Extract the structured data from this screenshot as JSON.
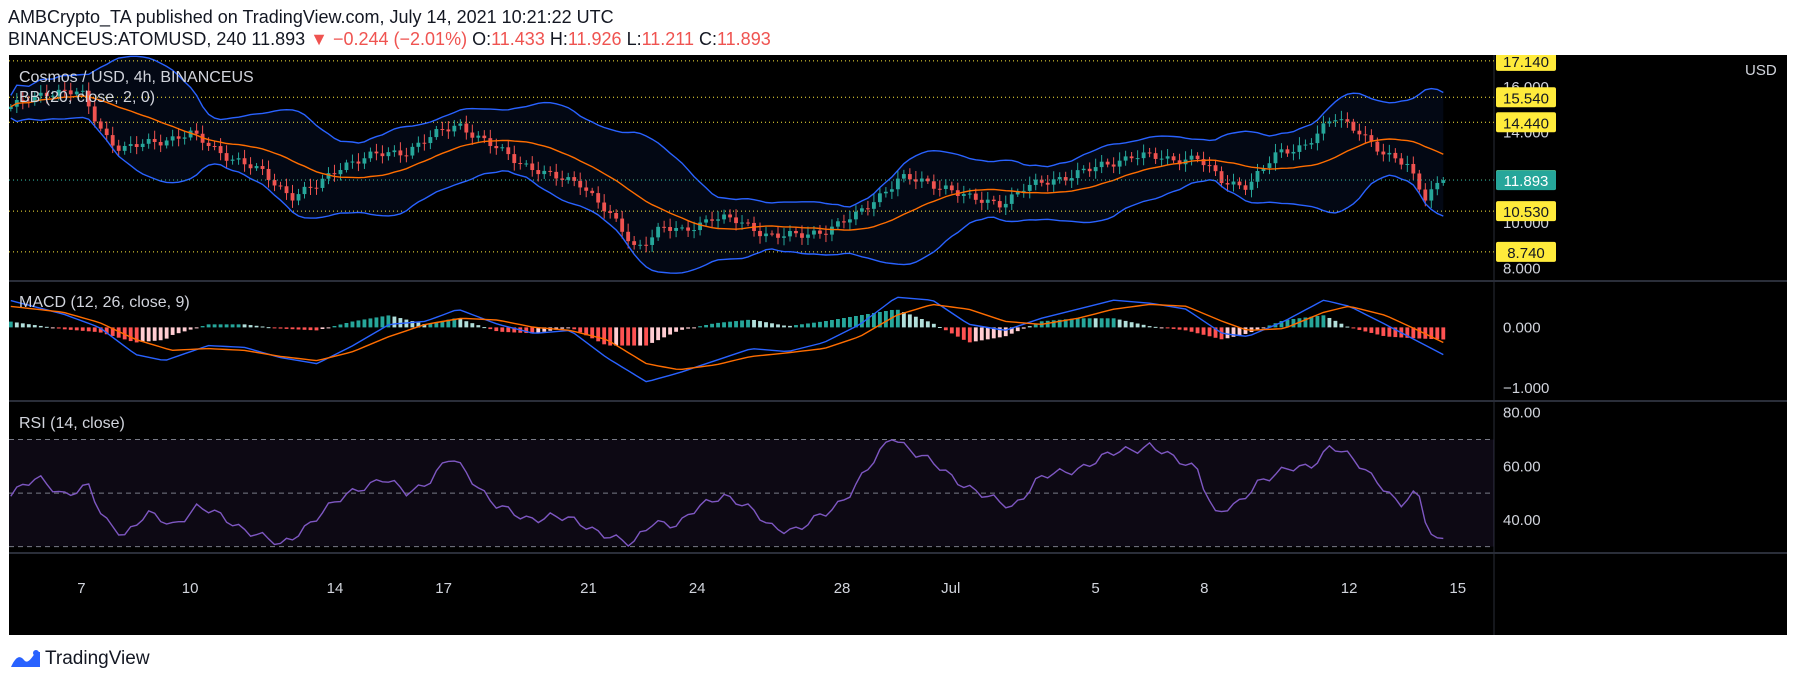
{
  "header": {
    "publish_line": "AMBCrypto_TA published on TradingView.com, July 14, 2021 10:21:22 UTC",
    "symbol": "BINANCEUS:ATOMUSD, 240",
    "last_price": "11.893",
    "change": "▼ −0.244 (−2.01%)",
    "o_label": "O:",
    "o_value": "11.433",
    "h_label": "H:",
    "h_value": "11.926",
    "l_label": "L:",
    "l_value": "11.211",
    "c_label": "C:",
    "c_value": "11.893"
  },
  "footer": {
    "brand": "TradingView"
  },
  "colors": {
    "up": "#26a69a",
    "down": "#ef5350",
    "bb_band": "#2962ff",
    "bb_basis": "#ff6d00",
    "macd_line": "#2962ff",
    "signal_line": "#ff6d00",
    "rsi_line": "#7e57c2",
    "level_box": "#ffeb3b",
    "price_box": "#26a69a"
  },
  "chart_data": [
    {
      "type": "candlestick",
      "title": "Cosmos / USD, 4h, BINANCEUS",
      "indicator_label": "BB (20, close, 2, 0)",
      "currency": "USD",
      "ylim": [
        7.5,
        17.4
      ],
      "y_ticks": [
        8,
        10,
        12,
        14,
        16
      ],
      "y_tick_labels": [
        "8.000",
        "10.000",
        "12.000",
        "14.000",
        "16.000"
      ],
      "x_ticks": [
        {
          "label": "7",
          "day": 7
        },
        {
          "label": "10",
          "day": 10
        },
        {
          "label": "14",
          "day": 14
        },
        {
          "label": "17",
          "day": 17
        },
        {
          "label": "21",
          "day": 21
        },
        {
          "label": "24",
          "day": 24
        },
        {
          "label": "28",
          "day": 28
        },
        {
          "label": "Jul",
          "day": 31
        },
        {
          "label": "5",
          "day": 35
        },
        {
          "label": "8",
          "day": 38
        },
        {
          "label": "12",
          "day": 42
        },
        {
          "label": "15",
          "day": 45
        }
      ],
      "xlim_days": [
        5.0,
        46.0
      ],
      "horizontal_levels": [
        {
          "value": 17.14,
          "label": "17.140"
        },
        {
          "value": 15.54,
          "label": "15.540"
        },
        {
          "value": 14.44,
          "label": "14.440"
        },
        {
          "value": 11.9,
          "label": "11.900"
        },
        {
          "value": 10.53,
          "label": "10.530"
        },
        {
          "value": 8.74,
          "label": "8.740"
        }
      ],
      "current_price": {
        "value": 11.893,
        "label": "11.893"
      },
      "close_keypoints": [
        [
          5.0,
          15.0
        ],
        [
          6.0,
          15.8
        ],
        [
          7.0,
          15.7
        ],
        [
          7.6,
          14.0
        ],
        [
          8.1,
          13.2
        ],
        [
          9.0,
          13.6
        ],
        [
          10.0,
          13.9
        ],
        [
          11.0,
          13.0
        ],
        [
          12.0,
          12.2
        ],
        [
          12.8,
          11.2
        ],
        [
          13.5,
          11.6
        ],
        [
          14.2,
          12.6
        ],
        [
          15.2,
          13.0
        ],
        [
          16.0,
          13.2
        ],
        [
          16.8,
          13.9
        ],
        [
          17.4,
          14.4
        ],
        [
          18.2,
          13.5
        ],
        [
          19.0,
          12.8
        ],
        [
          20.0,
          12.0
        ],
        [
          20.8,
          11.8
        ],
        [
          21.5,
          10.5
        ],
        [
          22.3,
          8.9
        ],
        [
          23.0,
          9.8
        ],
        [
          23.6,
          9.6
        ],
        [
          24.4,
          10.3
        ],
        [
          25.0,
          10.1
        ],
        [
          26.0,
          9.5
        ],
        [
          26.8,
          9.4
        ],
        [
          27.5,
          9.7
        ],
        [
          28.4,
          10.3
        ],
        [
          29.0,
          11.2
        ],
        [
          29.6,
          12.0
        ],
        [
          30.2,
          11.8
        ],
        [
          30.9,
          11.6
        ],
        [
          31.6,
          11.0
        ],
        [
          32.4,
          10.9
        ],
        [
          33.0,
          11.5
        ],
        [
          34.0,
          12.0
        ],
        [
          35.0,
          12.4
        ],
        [
          36.0,
          13.0
        ],
        [
          37.0,
          12.8
        ],
        [
          37.8,
          12.9
        ],
        [
          38.5,
          11.8
        ],
        [
          39.2,
          11.7
        ],
        [
          40.0,
          13.0
        ],
        [
          40.8,
          13.5
        ],
        [
          41.6,
          14.6
        ],
        [
          42.3,
          14.1
        ],
        [
          43.0,
          12.9
        ],
        [
          43.6,
          12.6
        ],
        [
          44.1,
          11.2
        ],
        [
          44.6,
          11.893
        ]
      ]
    },
    {
      "type": "histogram_line",
      "title": "MACD (12, 26, close, 9)",
      "ylim": [
        -1.2,
        0.75
      ],
      "y_ticks": [
        0,
        -1
      ],
      "y_tick_labels": [
        "0.000",
        "−1.000"
      ],
      "macd_keypoints": [
        [
          5.0,
          0.45
        ],
        [
          6.5,
          0.22
        ],
        [
          7.5,
          0.0
        ],
        [
          8.5,
          -0.45
        ],
        [
          9.3,
          -0.55
        ],
        [
          10.5,
          -0.3
        ],
        [
          11.5,
          -0.33
        ],
        [
          12.5,
          -0.5
        ],
        [
          13.5,
          -0.6
        ],
        [
          14.5,
          -0.3
        ],
        [
          15.5,
          0.05
        ],
        [
          16.5,
          0.1
        ],
        [
          17.4,
          0.3
        ],
        [
          18.5,
          0.05
        ],
        [
          19.5,
          -0.1
        ],
        [
          20.5,
          -0.05
        ],
        [
          21.5,
          -0.5
        ],
        [
          22.6,
          -0.9
        ],
        [
          23.5,
          -0.75
        ],
        [
          24.5,
          -0.55
        ],
        [
          25.5,
          -0.35
        ],
        [
          26.5,
          -0.4
        ],
        [
          27.5,
          -0.25
        ],
        [
          28.5,
          0.05
        ],
        [
          29.5,
          0.5
        ],
        [
          30.5,
          0.45
        ],
        [
          31.5,
          0.05
        ],
        [
          32.5,
          -0.05
        ],
        [
          33.5,
          0.15
        ],
        [
          34.5,
          0.3
        ],
        [
          35.5,
          0.45
        ],
        [
          36.5,
          0.4
        ],
        [
          37.5,
          0.3
        ],
        [
          38.5,
          -0.1
        ],
        [
          39.2,
          -0.15
        ],
        [
          40.2,
          0.1
        ],
        [
          41.3,
          0.45
        ],
        [
          42.0,
          0.35
        ],
        [
          43.0,
          0.05
        ],
        [
          43.8,
          -0.2
        ],
        [
          44.6,
          -0.45
        ]
      ],
      "signal_keypoints": [
        [
          5.0,
          0.35
        ],
        [
          6.5,
          0.25
        ],
        [
          7.5,
          0.08
        ],
        [
          8.5,
          -0.2
        ],
        [
          9.5,
          -0.38
        ],
        [
          10.5,
          -0.35
        ],
        [
          11.5,
          -0.38
        ],
        [
          12.5,
          -0.48
        ],
        [
          13.5,
          -0.55
        ],
        [
          14.5,
          -0.4
        ],
        [
          15.5,
          -0.15
        ],
        [
          16.5,
          0.05
        ],
        [
          17.5,
          0.15
        ],
        [
          18.5,
          0.12
        ],
        [
          19.5,
          0.0
        ],
        [
          20.5,
          -0.05
        ],
        [
          21.5,
          -0.2
        ],
        [
          22.6,
          -0.6
        ],
        [
          23.5,
          -0.7
        ],
        [
          24.5,
          -0.62
        ],
        [
          25.5,
          -0.48
        ],
        [
          26.5,
          -0.42
        ],
        [
          27.5,
          -0.35
        ],
        [
          28.5,
          -0.15
        ],
        [
          29.5,
          0.2
        ],
        [
          30.5,
          0.38
        ],
        [
          31.5,
          0.3
        ],
        [
          32.5,
          0.1
        ],
        [
          33.5,
          0.05
        ],
        [
          34.5,
          0.15
        ],
        [
          35.5,
          0.3
        ],
        [
          36.5,
          0.38
        ],
        [
          37.5,
          0.35
        ],
        [
          38.5,
          0.1
        ],
        [
          39.2,
          -0.05
        ],
        [
          40.2,
          -0.02
        ],
        [
          41.3,
          0.25
        ],
        [
          42.0,
          0.35
        ],
        [
          43.0,
          0.2
        ],
        [
          43.8,
          -0.02
        ],
        [
          44.6,
          -0.25
        ]
      ]
    },
    {
      "type": "line",
      "title": "RSI (14, close)",
      "ylim": [
        28,
        84
      ],
      "y_ticks": [
        40,
        60,
        80
      ],
      "y_tick_labels": [
        "40.00",
        "60.00",
        "80.00"
      ],
      "levels": [
        70,
        50,
        30
      ],
      "rsi_keypoints": [
        [
          5.0,
          50
        ],
        [
          5.8,
          55
        ],
        [
          6.5,
          50
        ],
        [
          7.2,
          52
        ],
        [
          7.6,
          40
        ],
        [
          8.2,
          35
        ],
        [
          8.8,
          42
        ],
        [
          9.5,
          38
        ],
        [
          10.2,
          45
        ],
        [
          11.0,
          40
        ],
        [
          11.8,
          35
        ],
        [
          12.5,
          30
        ],
        [
          13.2,
          38
        ],
        [
          13.9,
          45
        ],
        [
          14.6,
          52
        ],
        [
          15.3,
          55
        ],
        [
          16.0,
          50
        ],
        [
          16.6,
          55
        ],
        [
          17.2,
          63
        ],
        [
          17.8,
          55
        ],
        [
          18.5,
          45
        ],
        [
          19.2,
          40
        ],
        [
          20.0,
          42
        ],
        [
          20.8,
          38
        ],
        [
          21.5,
          35
        ],
        [
          22.2,
          30
        ],
        [
          22.8,
          40
        ],
        [
          23.5,
          38
        ],
        [
          24.1,
          45
        ],
        [
          24.7,
          50
        ],
        [
          25.3,
          45
        ],
        [
          26.0,
          38
        ],
        [
          26.8,
          36
        ],
        [
          27.5,
          42
        ],
        [
          28.2,
          50
        ],
        [
          28.8,
          60
        ],
        [
          29.4,
          72
        ],
        [
          30.0,
          65
        ],
        [
          30.6,
          60
        ],
        [
          31.2,
          55
        ],
        [
          32.0,
          48
        ],
        [
          32.7,
          45
        ],
        [
          33.4,
          55
        ],
        [
          34.2,
          58
        ],
        [
          35.0,
          62
        ],
        [
          35.8,
          66
        ],
        [
          36.5,
          68
        ],
        [
          37.2,
          62
        ],
        [
          37.8,
          60
        ],
        [
          38.3,
          42
        ],
        [
          38.9,
          45
        ],
        [
          39.5,
          55
        ],
        [
          40.2,
          58
        ],
        [
          40.9,
          60
        ],
        [
          41.5,
          68
        ],
        [
          42.1,
          62
        ],
        [
          42.8,
          55
        ],
        [
          43.4,
          45
        ],
        [
          43.9,
          50
        ],
        [
          44.2,
          36
        ],
        [
          44.5,
          32
        ],
        [
          44.8,
          39
        ]
      ]
    }
  ]
}
